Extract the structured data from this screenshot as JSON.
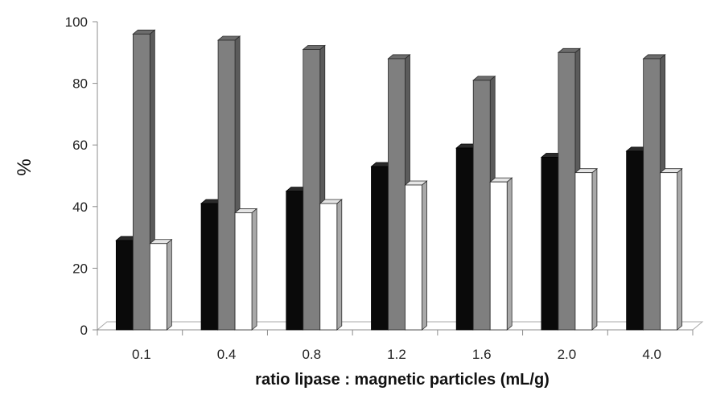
{
  "chart_data": {
    "type": "bar",
    "style": "3d-clustered-columns",
    "xlabel": "ratio lipase : magnetic particles (mL/g)",
    "ylabel": "%",
    "categories": [
      "0.1",
      "0.4",
      "0.8",
      "1.2",
      "1.6",
      "2.0",
      "4.0"
    ],
    "ylim": [
      0,
      100
    ],
    "yticks": [
      "0",
      "20",
      "40",
      "60",
      "80",
      "100"
    ],
    "grid": false,
    "legend": "none",
    "series": [
      {
        "color": "#0a0a0a",
        "values": [
          29,
          41,
          45,
          53,
          59,
          56,
          58
        ]
      },
      {
        "color": "#7f7f7f",
        "values": [
          96,
          94,
          91,
          88,
          81,
          90,
          88
        ]
      },
      {
        "color": "#ffffff",
        "values": [
          28,
          38,
          41,
          47,
          48,
          51,
          51
        ]
      }
    ]
  }
}
